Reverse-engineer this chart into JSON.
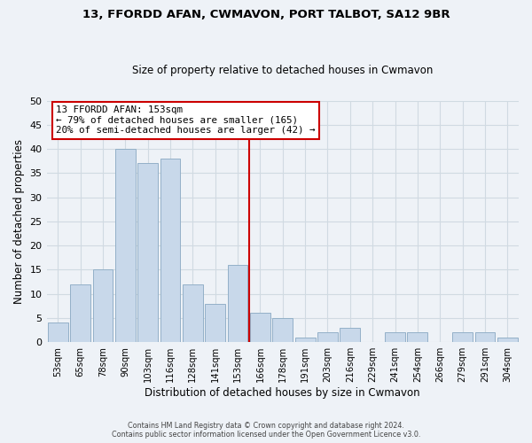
{
  "title": "13, FFORDD AFAN, CWMAVON, PORT TALBOT, SA12 9BR",
  "subtitle": "Size of property relative to detached houses in Cwmavon",
  "xlabel": "Distribution of detached houses by size in Cwmavon",
  "ylabel": "Number of detached properties",
  "bar_color": "#c8d8ea",
  "bar_edge_color": "#93b0c8",
  "categories": [
    "53sqm",
    "65sqm",
    "78sqm",
    "90sqm",
    "103sqm",
    "116sqm",
    "128sqm",
    "141sqm",
    "153sqm",
    "166sqm",
    "178sqm",
    "191sqm",
    "203sqm",
    "216sqm",
    "229sqm",
    "241sqm",
    "254sqm",
    "266sqm",
    "279sqm",
    "291sqm",
    "304sqm"
  ],
  "values": [
    4,
    12,
    15,
    40,
    37,
    38,
    12,
    8,
    16,
    6,
    5,
    1,
    2,
    3,
    0,
    2,
    2,
    0,
    2,
    2,
    1
  ],
  "ylim": [
    0,
    50
  ],
  "yticks": [
    0,
    5,
    10,
    15,
    20,
    25,
    30,
    35,
    40,
    45,
    50
  ],
  "vline_color": "#cc0000",
  "annotation_title": "13 FFORDD AFAN: 153sqm",
  "annotation_line1": "← 79% of detached houses are smaller (165)",
  "annotation_line2": "20% of semi-detached houses are larger (42) →",
  "annotation_box_color": "#ffffff",
  "annotation_box_edge": "#cc0000",
  "footer1": "Contains HM Land Registry data © Crown copyright and database right 2024.",
  "footer2": "Contains public sector information licensed under the Open Government Licence v3.0.",
  "grid_color": "#d0dae2",
  "background_color": "#eef2f7"
}
